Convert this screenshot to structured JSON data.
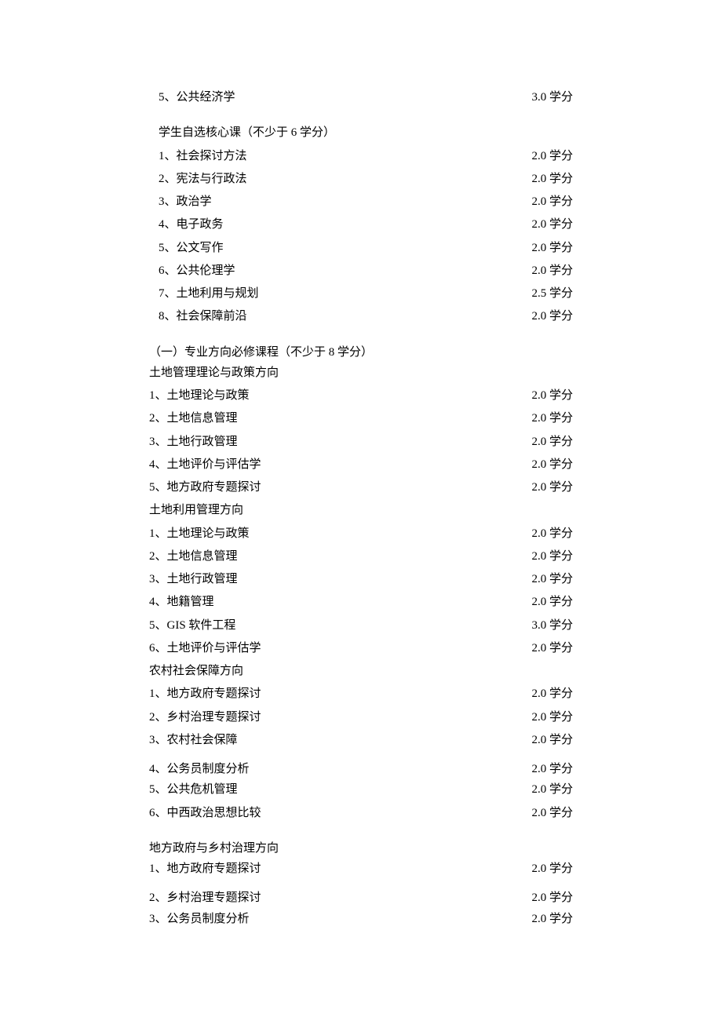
{
  "credit_suffix": "学分",
  "top_items": [
    {
      "label": "5、公共经济学",
      "credit": "3.0"
    }
  ],
  "elective_header": "学生自选核心课（不少于 6 学分）",
  "elective_items": [
    {
      "label": "1、社会探讨方法",
      "credit": "2.0"
    },
    {
      "label": "2、宪法与行政法",
      "credit": "2.0"
    },
    {
      "label": "3、政治学",
      "credit": "2.0"
    },
    {
      "label": "4、电子政务",
      "credit": "2.0"
    },
    {
      "label": "5、公文写作",
      "credit": "2.0"
    },
    {
      "label": "6、公共伦理学",
      "credit": "2.0"
    },
    {
      "label": "7、土地利用与规划",
      "credit": "2.5"
    },
    {
      "label": "8、社会保障前沿",
      "credit": "2.0"
    }
  ],
  "section_one_header": "（一）专业方向必修课程（不少于 8 学分）",
  "direction_a_header": "土地管理理论与政策方向",
  "direction_a_items": [
    {
      "label": "1、土地理论与政策",
      "credit": "2.0"
    },
    {
      "label": "2、土地信息管理",
      "credit": "2.0"
    },
    {
      "label": "3、土地行政管理",
      "credit": "2.0"
    },
    {
      "label": "4、土地评价与评估学",
      "credit": "2.0"
    },
    {
      "label": "5、地方政府专题探讨",
      "credit": "2.0"
    }
  ],
  "direction_b_header": "土地利用管理方向",
  "direction_b_items": [
    {
      "label": "1、土地理论与政策",
      "credit": "2.0"
    },
    {
      "label": "2、土地信息管理",
      "credit": "2.0"
    },
    {
      "label": "3、土地行政管理",
      "credit": "2.0"
    },
    {
      "label": "4、地籍管理",
      "credit": "2.0"
    },
    {
      "label": "5、GIS 软件工程",
      "credit": "3.0"
    },
    {
      "label": "6、土地评价与评估学",
      "credit": "2.0"
    }
  ],
  "direction_c_header": "农村社会保障方向",
  "direction_c_items": [
    {
      "label": "1、地方政府专题探讨",
      "credit": "2.0"
    },
    {
      "label": "2、乡村治理专题探讨",
      "credit": "2.0"
    },
    {
      "label": "3、农村社会保障",
      "credit": "2.0"
    }
  ],
  "direction_c_items2": [
    {
      "label": "4、公务员制度分析",
      "credit": "2.0"
    },
    {
      "label": "5、公共危机管理",
      "credit": "2.0"
    }
  ],
  "direction_c_items3": [
    {
      "label": "6、中西政治思想比较",
      "credit": "2.0"
    }
  ],
  "direction_d_header": "地方政府与乡村治理方向",
  "direction_d_items1": [
    {
      "label": "1、地方政府专题探讨",
      "credit": "2.0"
    }
  ],
  "direction_d_items2": [
    {
      "label": "2、乡村治理专题探讨",
      "credit": "2.0"
    },
    {
      "label": "3、公务员制度分析",
      "credit": "2.0"
    }
  ]
}
